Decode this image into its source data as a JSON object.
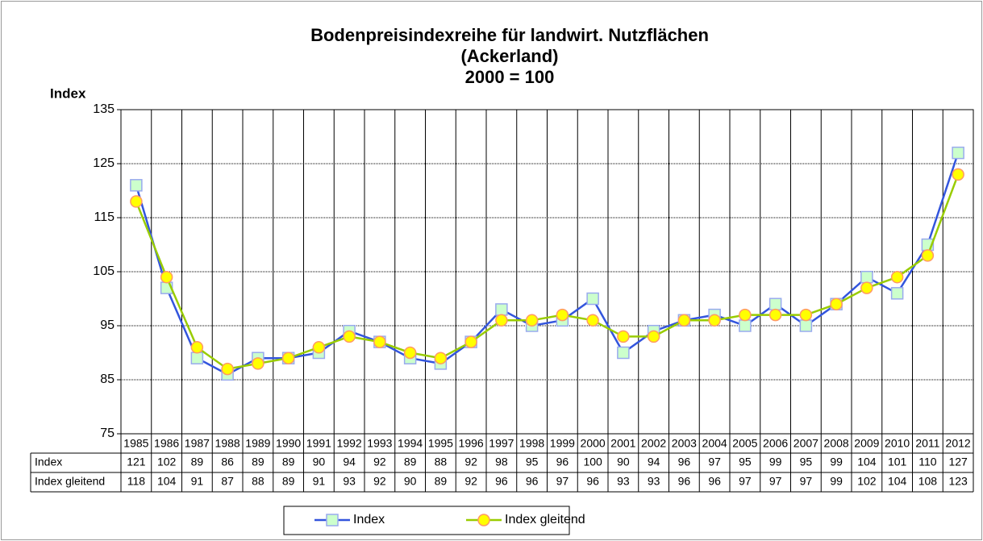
{
  "chart_data": {
    "type": "line",
    "title": [
      "Bodenpreisindexreihe für landwirt. Nutzflächen",
      "(Ackerland)",
      "2000 = 100"
    ],
    "y_label": "Index",
    "categories": [
      "1985",
      "1986",
      "1987",
      "1988",
      "1989",
      "1990",
      "1991",
      "1992",
      "1993",
      "1994",
      "1995",
      "1996",
      "1997",
      "1998",
      "1999",
      "2000",
      "2001",
      "2002",
      "2003",
      "2004",
      "2005",
      "2006",
      "2007",
      "2008",
      "2009",
      "2010",
      "2011",
      "2012"
    ],
    "series": [
      {
        "name": "Index",
        "color": "#3355dd",
        "marker": "square",
        "marker_fill": "#ccffcc",
        "marker_stroke": "#99aaee",
        "values": [
          121,
          102,
          89,
          86,
          89,
          89,
          90,
          94,
          92,
          89,
          88,
          92,
          98,
          95,
          96,
          100,
          90,
          94,
          96,
          97,
          95,
          99,
          95,
          99,
          104,
          101,
          110,
          127
        ]
      },
      {
        "name": "Index gleitend",
        "color": "#99cc00",
        "marker": "circle",
        "marker_fill": "#ffff00",
        "marker_stroke": "#ff9966",
        "values": [
          118,
          104,
          91,
          87,
          88,
          89,
          91,
          93,
          92,
          90,
          89,
          92,
          96,
          96,
          97,
          96,
          93,
          93,
          96,
          96,
          97,
          97,
          97,
          99,
          102,
          104,
          108,
          123
        ]
      }
    ],
    "ylim": [
      75,
      135
    ],
    "yticks": [
      75,
      85,
      95,
      105,
      115,
      125,
      135
    ],
    "grid": true,
    "data_table": true,
    "legend": "bottom"
  }
}
